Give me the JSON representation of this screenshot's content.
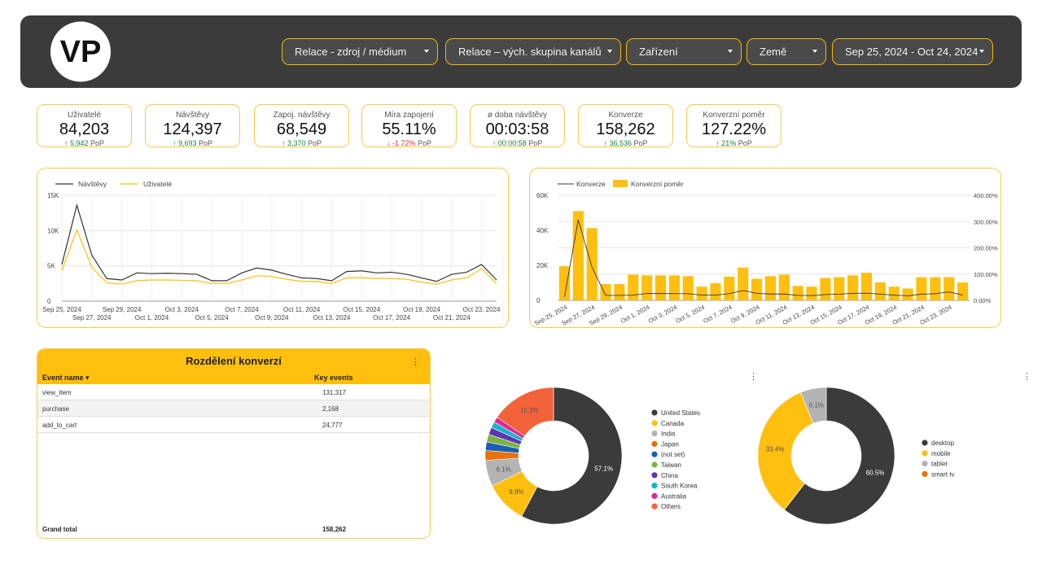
{
  "header": {
    "logo_text": "VP",
    "filters": [
      {
        "label": "Relace - zdroj / médium"
      },
      {
        "label": "Relace – vých. skupina kanálů"
      },
      {
        "label": "Zařízení"
      },
      {
        "label": "Země"
      },
      {
        "label": "Sep 25, 2024 - Oct 24, 2024"
      }
    ]
  },
  "kpis": [
    {
      "label": "Uživatelé",
      "value": "84,203",
      "arrow": "↑",
      "delta": "5,942",
      "suffix": "PoP",
      "direction": "up"
    },
    {
      "label": "Návštěvy",
      "value": "124,397",
      "arrow": "↑",
      "delta": "9,693",
      "suffix": "PoP",
      "direction": "up"
    },
    {
      "label": "Zapoj. návštěvy",
      "value": "68,549",
      "arrow": "↑",
      "delta": "3,370",
      "suffix": "PoP",
      "direction": "up"
    },
    {
      "label": "Míra zapojení",
      "value": "55.11%",
      "arrow": "↓",
      "delta": "-1.72%",
      "suffix": "PoP",
      "direction": "down"
    },
    {
      "label": "ø doba návštěvy",
      "value": "00:03:58",
      "arrow": "↑",
      "delta": "00:00:58",
      "suffix": "PoP",
      "direction": "up"
    },
    {
      "label": "Konverze",
      "value": "158,262",
      "arrow": "↑",
      "delta": "36,536",
      "suffix": "PoP",
      "direction": "up"
    },
    {
      "label": "Konverzní poměr",
      "value": "127.22%",
      "arrow": "↑",
      "delta": "21%",
      "suffix": "PoP",
      "direction": "up"
    }
  ],
  "table": {
    "title": "Rozdělení konverzí",
    "menu": "⋮",
    "col_event": "Event name ▾",
    "col_key": "Key events",
    "rows": [
      {
        "event": "view_item",
        "value": "131,317"
      },
      {
        "event": "purchase",
        "value": "2,168"
      },
      {
        "event": "add_to_cart",
        "value": "24,777"
      }
    ],
    "total_label": "Grand total",
    "total_value": "158,262"
  },
  "menus": {
    "pie1": "⋮",
    "pie2": "⋮"
  },
  "colors": {
    "accent": "#ffbf0f",
    "dark": "#3b3b3b",
    "line_dark": "#333333",
    "line_yellow": "#ffbf0f"
  },
  "chart_data": [
    {
      "type": "line",
      "legend": [
        "Návštěvy",
        "Uživatelé"
      ],
      "x": [
        "Sep 25, 2024",
        "Sep 26, 2024",
        "Sep 27, 2024",
        "Sep 28, 2024",
        "Sep 29, 2024",
        "Sep 30, 2024",
        "Oct 1, 2024",
        "Oct 2, 2024",
        "Oct 3, 2024",
        "Oct 4, 2024",
        "Oct 5, 2024",
        "Oct 6, 2024",
        "Oct 7, 2024",
        "Oct 8, 2024",
        "Oct 9, 2024",
        "Oct 10, 2024",
        "Oct 11, 2024",
        "Oct 12, 2024",
        "Oct 13, 2024",
        "Oct 14, 2024",
        "Oct 15, 2024",
        "Oct 16, 2024",
        "Oct 17, 2024",
        "Oct 18, 2024",
        "Oct 19, 2024",
        "Oct 20, 2024",
        "Oct 21, 2024",
        "Oct 22, 2024",
        "Oct 23, 2024",
        "Oct 24, 2024"
      ],
      "x_ticks_top": [
        "Sep 25, 2024",
        "Sep 29, 2024",
        "Oct 3, 2024",
        "Oct 7, 2024",
        "Oct 11, 2024",
        "Oct 15, 2024",
        "Oct 19, 2024",
        "Oct 23, 2024"
      ],
      "x_ticks_bottom": [
        "Sep 27, 2024",
        "Oct 1, 2024",
        "Oct 5, 2024",
        "Oct 9, 2024",
        "Oct 13, 2024",
        "Oct 17, 2024",
        "Oct 21, 2024"
      ],
      "y_ticks": [
        "0",
        "5K",
        "10K",
        "15K"
      ],
      "ylim": [
        0,
        15000
      ],
      "series": [
        {
          "name": "Návštěvy",
          "color": "#333333",
          "values": [
            5200,
            13600,
            6500,
            3200,
            3000,
            4000,
            3900,
            3950,
            3900,
            3800,
            2900,
            2900,
            4000,
            4700,
            4400,
            3800,
            3300,
            3200,
            2900,
            4200,
            4300,
            4000,
            4100,
            3800,
            3300,
            2800,
            3800,
            4100,
            5200,
            3000
          ]
        },
        {
          "name": "Uživatelé",
          "color": "#ffbf0f",
          "values": [
            4300,
            10100,
            4800,
            2600,
            2400,
            2900,
            3000,
            3000,
            2950,
            2900,
            2500,
            2500,
            3000,
            3600,
            3500,
            3100,
            2800,
            2800,
            2500,
            3300,
            3300,
            3200,
            3200,
            3100,
            2700,
            2400,
            3000,
            3300,
            4600,
            2500
          ]
        }
      ]
    },
    {
      "type": "bar",
      "legend": [
        "Konverze",
        "Konverzní poměr"
      ],
      "x": [
        "Sep 25, 2024",
        "Sep 26, 2024",
        "Sep 27, 2024",
        "Sep 28, 2024",
        "Sep 29, 2024",
        "Sep 30, 2024",
        "Oct 1, 2024",
        "Oct 2, 2024",
        "Oct 3, 2024",
        "Oct 4, 2024",
        "Oct 5, 2024",
        "Oct 6, 2024",
        "Oct 7, 2024",
        "Oct 8, 2024",
        "Oct 9, 2024",
        "Oct 10, 2024",
        "Oct 11, 2024",
        "Oct 12, 2024",
        "Oct 13, 2024",
        "Oct 14, 2024",
        "Oct 15, 2024",
        "Oct 16, 2024",
        "Oct 17, 2024",
        "Oct 18, 2024",
        "Oct 19, 2024",
        "Oct 20, 2024",
        "Oct 21, 2024",
        "Oct 22, 2024",
        "Oct 23, 2024",
        "Oct 24, 2024"
      ],
      "x_ticks": [
        "Sep 25, 2024",
        "Sep 27, 2024",
        "Sep 29, 2024",
        "Oct 1, 2024",
        "Oct 3, 2024",
        "Oct 5, 2024",
        "Oct 7, 2024",
        "Oct 9, 2024",
        "Oct 11, 2024",
        "Oct 13, 2024",
        "Oct 15, 2024",
        "Oct 17, 2024",
        "Oct 19, 2024",
        "Oct 21, 2024",
        "Oct 23, 2024"
      ],
      "y_ticks_left": [
        "0",
        "20K",
        "40K",
        "60K"
      ],
      "y_ticks_right": [
        "0.00%",
        "100.00%",
        "200.00%",
        "300.00%",
        "400.00%"
      ],
      "ylim_left": [
        0,
        60000
      ],
      "ylim_right": [
        0,
        400
      ],
      "bar_series": {
        "name": "Konverzní poměr",
        "color": "#ffbf0f",
        "values": [
          130,
          340,
          275,
          62,
          62,
          98,
          95,
          95,
          95,
          92,
          52,
          65,
          90,
          125,
          82,
          92,
          98,
          55,
          52,
          85,
          88,
          95,
          105,
          68,
          52,
          45,
          88,
          88,
          88,
          68
        ]
      },
      "line_series": {
        "name": "Konverze",
        "color": "#333333",
        "values": [
          2000,
          46000,
          19000,
          2800,
          2800,
          3000,
          3900,
          3900,
          3800,
          3800,
          3000,
          3000,
          3800,
          5600,
          4000,
          3600,
          3600,
          2800,
          2700,
          3300,
          3500,
          4000,
          4100,
          3500,
          3000,
          2600,
          3500,
          3800,
          4800,
          3000
        ]
      }
    },
    {
      "type": "pie",
      "labels": [
        "United States",
        "Canada",
        "India",
        "Japan",
        "(not set)",
        "Taiwan",
        "China",
        "South Korea",
        "Australia",
        "Others"
      ],
      "values": [
        57.1,
        9.9,
        6.1,
        2.3,
        2.0,
        1.8,
        1.7,
        1.4,
        1.3,
        15.3
      ],
      "value_labels": [
        "57.1%",
        "9.9%",
        "6.1%",
        "",
        "",
        "",
        "",
        "",
        "",
        "15.3%"
      ],
      "colors": [
        "#3b3b3b",
        "#ffbf0f",
        "#b3b3b3",
        "#e8710a",
        "#1a5fb4",
        "#7cb342",
        "#5e35b1",
        "#12b5cb",
        "#e52592",
        "#f4623a"
      ]
    },
    {
      "type": "pie",
      "labels": [
        "desktop",
        "mobile",
        "tablet",
        "smart tv"
      ],
      "values": [
        60.5,
        33.4,
        6.1,
        0.0
      ],
      "value_labels": [
        "60.5%",
        "33.4%",
        "6.1%",
        ""
      ],
      "colors": [
        "#3b3b3b",
        "#ffbf0f",
        "#b3b3b3",
        "#e8710a"
      ]
    }
  ]
}
